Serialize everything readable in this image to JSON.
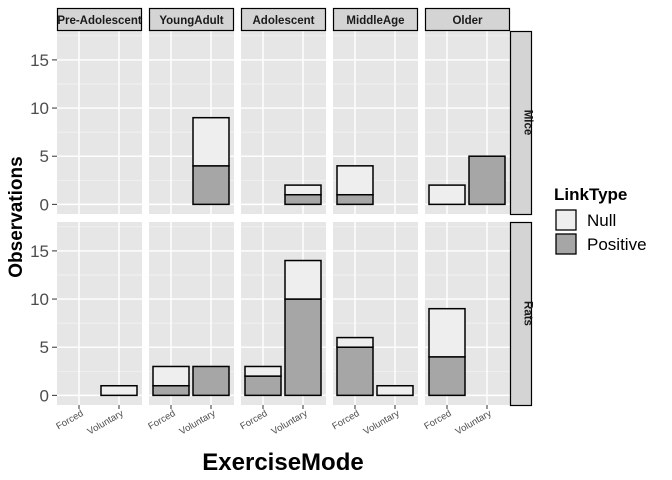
{
  "chart_data": {
    "type": "bar",
    "stacked": true,
    "xlabel": "ExerciseMode",
    "ylabel": "Observations",
    "ylim": [
      -1,
      18
    ],
    "y_ticks": [
      0,
      5,
      10,
      15
    ],
    "categories": [
      "Forced",
      "Voluntary"
    ],
    "column_facets": [
      "Pre-Adolescent",
      "YoungAdult",
      "Adolescent",
      "MiddleAge",
      "Older"
    ],
    "row_facets": [
      "Mice",
      "Rats"
    ],
    "legend": {
      "title": "LinkType",
      "position": "right",
      "entries": [
        {
          "name": "Null",
          "color": "#eeeeee"
        },
        {
          "name": "Positive",
          "color": "#a6a6a6"
        }
      ]
    },
    "panel_background": "#e6e6e6",
    "strip_background": "#d4d4d4",
    "grid": true,
    "panels": [
      {
        "row": "Mice",
        "column": "Pre-Adolescent",
        "bars": []
      },
      {
        "row": "Mice",
        "column": "YoungAdult",
        "bars": [
          {
            "category": "Voluntary",
            "Positive": 4,
            "Null": 5
          }
        ]
      },
      {
        "row": "Mice",
        "column": "Adolescent",
        "bars": [
          {
            "category": "Voluntary",
            "Positive": 1,
            "Null": 1
          }
        ]
      },
      {
        "row": "Mice",
        "column": "MiddleAge",
        "bars": [
          {
            "category": "Forced",
            "Positive": 1,
            "Null": 3
          }
        ]
      },
      {
        "row": "Mice",
        "column": "Older",
        "bars": [
          {
            "category": "Forced",
            "Positive": 0,
            "Null": 2
          },
          {
            "category": "Voluntary",
            "Positive": 5,
            "Null": 0
          }
        ]
      },
      {
        "row": "Rats",
        "column": "Pre-Adolescent",
        "bars": [
          {
            "category": "Voluntary",
            "Positive": 0,
            "Null": 1
          }
        ]
      },
      {
        "row": "Rats",
        "column": "YoungAdult",
        "bars": [
          {
            "category": "Forced",
            "Positive": 1,
            "Null": 2
          },
          {
            "category": "Voluntary",
            "Positive": 3,
            "Null": 0
          }
        ]
      },
      {
        "row": "Rats",
        "column": "Adolescent",
        "bars": [
          {
            "category": "Forced",
            "Positive": 2,
            "Null": 1
          },
          {
            "category": "Voluntary",
            "Positive": 10,
            "Null": 4
          }
        ]
      },
      {
        "row": "Rats",
        "column": "MiddleAge",
        "bars": [
          {
            "category": "Forced",
            "Positive": 5,
            "Null": 1
          },
          {
            "category": "Voluntary",
            "Positive": 0,
            "Null": 1
          }
        ]
      },
      {
        "row": "Rats",
        "column": "Older",
        "bars": [
          {
            "category": "Forced",
            "Positive": 4,
            "Null": 5
          }
        ]
      }
    ]
  }
}
